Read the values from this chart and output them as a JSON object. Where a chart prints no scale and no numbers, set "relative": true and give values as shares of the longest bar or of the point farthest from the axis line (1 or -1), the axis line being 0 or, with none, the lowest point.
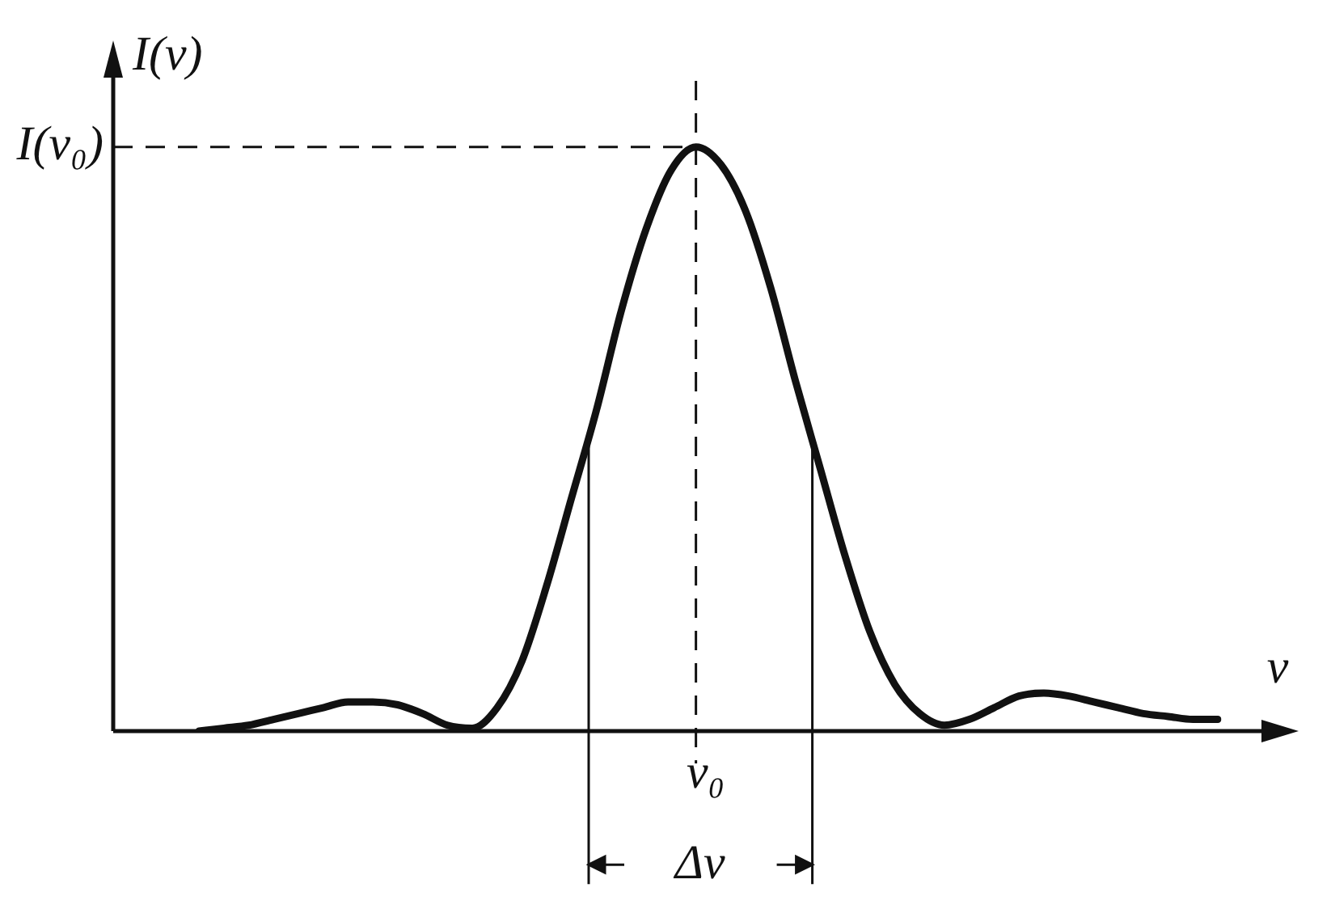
{
  "chart_data": {
    "type": "line",
    "relative": true,
    "ylabel": "I(ν)",
    "xlabel": "ν",
    "categories": [
      null,
      null,
      null,
      null,
      null,
      null,
      null,
      null,
      null,
      null,
      null,
      null,
      null,
      null,
      null,
      null,
      null,
      null,
      null,
      null,
      null,
      null,
      null,
      null,
      null,
      null,
      null,
      null,
      null,
      null,
      null,
      null,
      null,
      null,
      null,
      null,
      null,
      null,
      null,
      null,
      null,
      null
    ],
    "series": [
      {
        "color": "#111111",
        "values": [
          0,
          0.005,
          0.01,
          0.02,
          0.03,
          0.04,
          0.05,
          0.05,
          0.045,
          0.03,
          0.01,
          0.005,
          0.04,
          0.12,
          0.25,
          0.4,
          0.55,
          0.72,
          0.86,
          0.96,
          1,
          0.97,
          0.89,
          0.76,
          0.6,
          0.45,
          0.3,
          0.17,
          0.08,
          0.03,
          0.01,
          0.02,
          0.04,
          0.06,
          0.065,
          0.06,
          0.05,
          0.04,
          0.03,
          0.025,
          0.02,
          0.02
        ]
      }
    ],
    "ref_lines": [
      {
        "axis": "x",
        "label": "ν₀",
        "line_style": "dashed"
      },
      {
        "axis": "y",
        "value": 1,
        "label": "I(ν₀)",
        "line_style": "dashed"
      }
    ],
    "annotations": [
      "Δν"
    ],
    "grid": false,
    "legend": false,
    "marker": "none",
    "line_style": "solid"
  }
}
